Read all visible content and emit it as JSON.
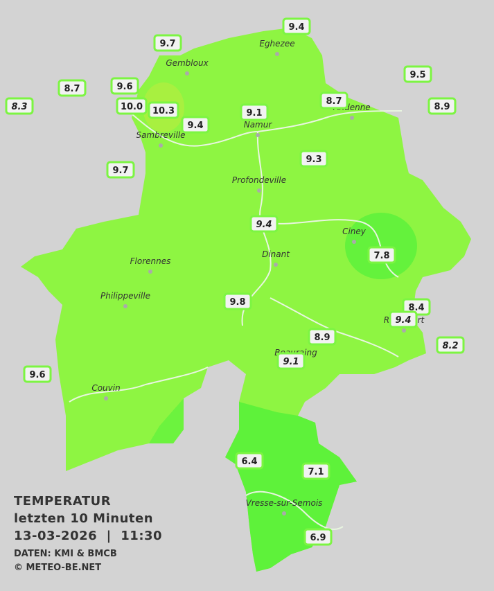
{
  "title": {
    "lines": [
      "TEMPERATUR",
      "letzten 10 Minuten",
      "13-03-2026  |  11:30"
    ]
  },
  "credits": [
    "DATEN: KMI & BMCB",
    "© METEO-BE.NET"
  ],
  "towns": [
    "Gembloux",
    "Eghezee",
    "Andenne",
    "Namur",
    "Sambreville",
    "Profondeville",
    "Ciney",
    "Dinant",
    "Florennes",
    "Philippeville",
    "Rochefort",
    "Beauraing",
    "Couvin",
    "Vresse-sur-Semois"
  ],
  "stations": [
    "9.4",
    "9.7",
    "9.5",
    "8.7",
    "9.6",
    "8.3",
    "10.0",
    "10.3",
    "8.9",
    "8.7",
    "9.1",
    "9.4",
    "9.7",
    "9.3",
    "9.4",
    "7.8",
    "9.8",
    "8.4",
    "9.4",
    "8.9",
    "8.2",
    "9.1",
    "9.6",
    "6.4",
    "7.1",
    "6.9"
  ]
}
